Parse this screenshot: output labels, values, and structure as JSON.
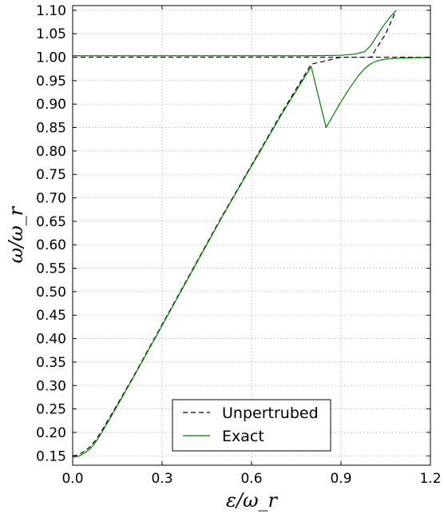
{
  "chart_data": {
    "type": "line",
    "title": "",
    "xlabel": "ε/ω_r",
    "ylabel": "ω/ω_r",
    "xlim": [
      0.0,
      1.2
    ],
    "ylim": [
      0.13,
      1.11
    ],
    "xticks": [
      0.0,
      0.3,
      0.6,
      0.9,
      1.2
    ],
    "xtick_labels": [
      "0.0",
      "0.3",
      "0.6",
      "0.9",
      "1.2"
    ],
    "yticks": [
      0.15,
      0.2,
      0.25,
      0.3,
      0.35,
      0.4,
      0.45,
      0.5,
      0.55,
      0.6,
      0.65,
      0.7,
      0.75,
      0.8,
      0.85,
      0.9,
      0.95,
      1.0,
      1.05,
      1.1
    ],
    "ytick_labels": [
      "0.15",
      "0.20",
      "0.25",
      "0.30",
      "0.35",
      "0.40",
      "0.45",
      "0.50",
      "0.55",
      "0.60",
      "0.65",
      "0.70",
      "0.75",
      "0.80",
      "0.85",
      "0.90",
      "0.95",
      "1.00",
      "1.05",
      "1.10"
    ],
    "grid": true,
    "legend_position": "bottom-center",
    "series": [
      {
        "name": "Unpertrubed",
        "style": "dashed",
        "color": "#000000",
        "segments": [
          {
            "x": [
              0.0,
              0.02,
              0.04,
              0.06,
              0.08,
              0.1,
              0.15,
              0.2,
              0.3,
              0.4,
              0.5,
              0.6,
              0.7,
              0.8,
              0.9,
              0.95,
              1.0,
              1.05,
              1.085
            ],
            "y": [
              0.15,
              0.152,
              0.16,
              0.17,
              0.186,
              0.206,
              0.26,
              0.315,
              0.43,
              0.545,
              0.66,
              0.77,
              0.88,
              0.985,
              1.0,
              1.0,
              1.0,
              1.05,
              1.1
            ]
          },
          {
            "x": [
              0.0,
              0.2,
              0.4,
              0.6,
              0.8,
              0.9,
              0.95,
              1.0,
              1.05,
              1.1,
              1.2
            ],
            "y": [
              1.0,
              1.0,
              1.0,
              1.0,
              1.0,
              1.0,
              1.0,
              1.0,
              1.0,
              1.0,
              1.0
            ]
          }
        ]
      },
      {
        "name": "Exact",
        "style": "solid",
        "color": "#007f00",
        "segments": [
          {
            "x": [
              0.0,
              0.02,
              0.04,
              0.06,
              0.08,
              0.1,
              0.15,
              0.2,
              0.3,
              0.4,
              0.5,
              0.6,
              0.7,
              0.8,
              0.85,
              0.9,
              0.93,
              0.96,
              0.98,
              1.0,
              1.02,
              1.05,
              1.1,
              1.15,
              1.2
            ],
            "y": [
              0.147,
              0.149,
              0.156,
              0.166,
              0.182,
              0.202,
              0.257,
              0.313,
              0.428,
              0.543,
              0.658,
              0.768,
              0.877,
              0.98,
              0.85,
              0.905,
              0.935,
              0.962,
              0.976,
              0.986,
              0.992,
              0.996,
              0.998,
              0.999,
              0.999
            ]
          },
          {
            "x": [
              0.0,
              0.2,
              0.4,
              0.6,
              0.8,
              0.9,
              0.95,
              0.98,
              1.0,
              1.02,
              1.04,
              1.06,
              1.085
            ],
            "y": [
              1.003,
              1.003,
              1.003,
              1.003,
              1.003,
              1.004,
              1.007,
              1.012,
              1.025,
              1.045,
              1.065,
              1.082,
              1.1
            ]
          }
        ]
      }
    ]
  }
}
